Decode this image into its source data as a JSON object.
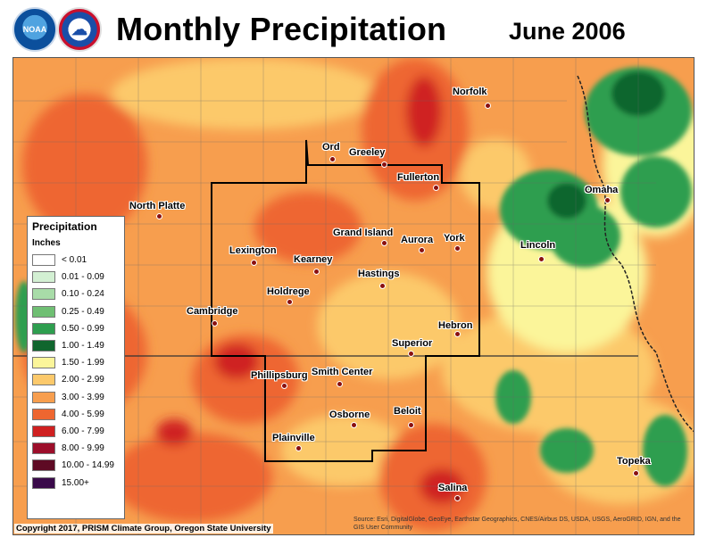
{
  "header": {
    "title": "Monthly Precipitation",
    "date": "June 2006",
    "logos": [
      {
        "name": "noaa-logo",
        "text": "NOAA"
      },
      {
        "name": "nws-logo",
        "text": "☁"
      }
    ]
  },
  "legend": {
    "title": "Precipitation",
    "units": "Inches",
    "items": [
      {
        "label": "< 0.01",
        "color": "#ffffff"
      },
      {
        "label": "0.01 - 0.09",
        "color": "#d3f0d3"
      },
      {
        "label": "0.10 - 0.24",
        "color": "#a8dca8"
      },
      {
        "label": "0.25 - 0.49",
        "color": "#6fbf73"
      },
      {
        "label": "0.50 - 0.99",
        "color": "#2e9e4f"
      },
      {
        "label": "1.00 - 1.49",
        "color": "#10662e"
      },
      {
        "label": "1.50 - 1.99",
        "color": "#fbf59a"
      },
      {
        "label": "2.00 - 2.99",
        "color": "#fcc96b"
      },
      {
        "label": "3.00 - 3.99",
        "color": "#f79e4e"
      },
      {
        "label": "4.00 - 5.99",
        "color": "#ee6630"
      },
      {
        "label": "6.00 - 7.99",
        "color": "#cf2020"
      },
      {
        "label": "8.00 - 9.99",
        "color": "#9c0e2a"
      },
      {
        "label": "10.00 - 14.99",
        "color": "#5e0a24"
      },
      {
        "label": "15.00+",
        "color": "#3a0a4a"
      }
    ]
  },
  "cities": [
    {
      "name": "Norfolk",
      "label": "Norfolk"
    },
    {
      "name": "Ord",
      "label": "Ord"
    },
    {
      "name": "Greeley",
      "label": "Greeley"
    },
    {
      "name": "Fullerton",
      "label": "Fullerton"
    },
    {
      "name": "Omaha",
      "label": "Omaha"
    },
    {
      "name": "North Platte",
      "label": "North Platte"
    },
    {
      "name": "Grand Island",
      "label": "Grand Island"
    },
    {
      "name": "Aurora",
      "label": "Aurora"
    },
    {
      "name": "York",
      "label": "York"
    },
    {
      "name": "Lincoln",
      "label": "Lincoln"
    },
    {
      "name": "Lexington",
      "label": "Lexington"
    },
    {
      "name": "Kearney",
      "label": "Kearney"
    },
    {
      "name": "Hastings",
      "label": "Hastings"
    },
    {
      "name": "Holdrege",
      "label": "Holdrege"
    },
    {
      "name": "Cambridge",
      "label": "Cambridge"
    },
    {
      "name": "Hebron",
      "label": "Hebron"
    },
    {
      "name": "Superior",
      "label": "Superior"
    },
    {
      "name": "Phillipsburg",
      "label": "Phillipsburg"
    },
    {
      "name": "Smith Center",
      "label": "Smith Center"
    },
    {
      "name": "Osborne",
      "label": "Osborne"
    },
    {
      "name": "Beloit",
      "label": "Beloit"
    },
    {
      "name": "Plainville",
      "label": "Plainville"
    },
    {
      "name": "Topeka",
      "label": "Topeka"
    },
    {
      "name": "Salina",
      "label": "Salina"
    }
  ],
  "footer": {
    "copyright": "Copyright 2017, PRISM Climate Group, Oregon State University",
    "credits": "Source: Esri, DigitalGlobe, GeoEye, Earthstar Geographics, CNES/Airbus DS, USDA, USGS, AeroGRID, IGN, and the GIS User Community"
  }
}
